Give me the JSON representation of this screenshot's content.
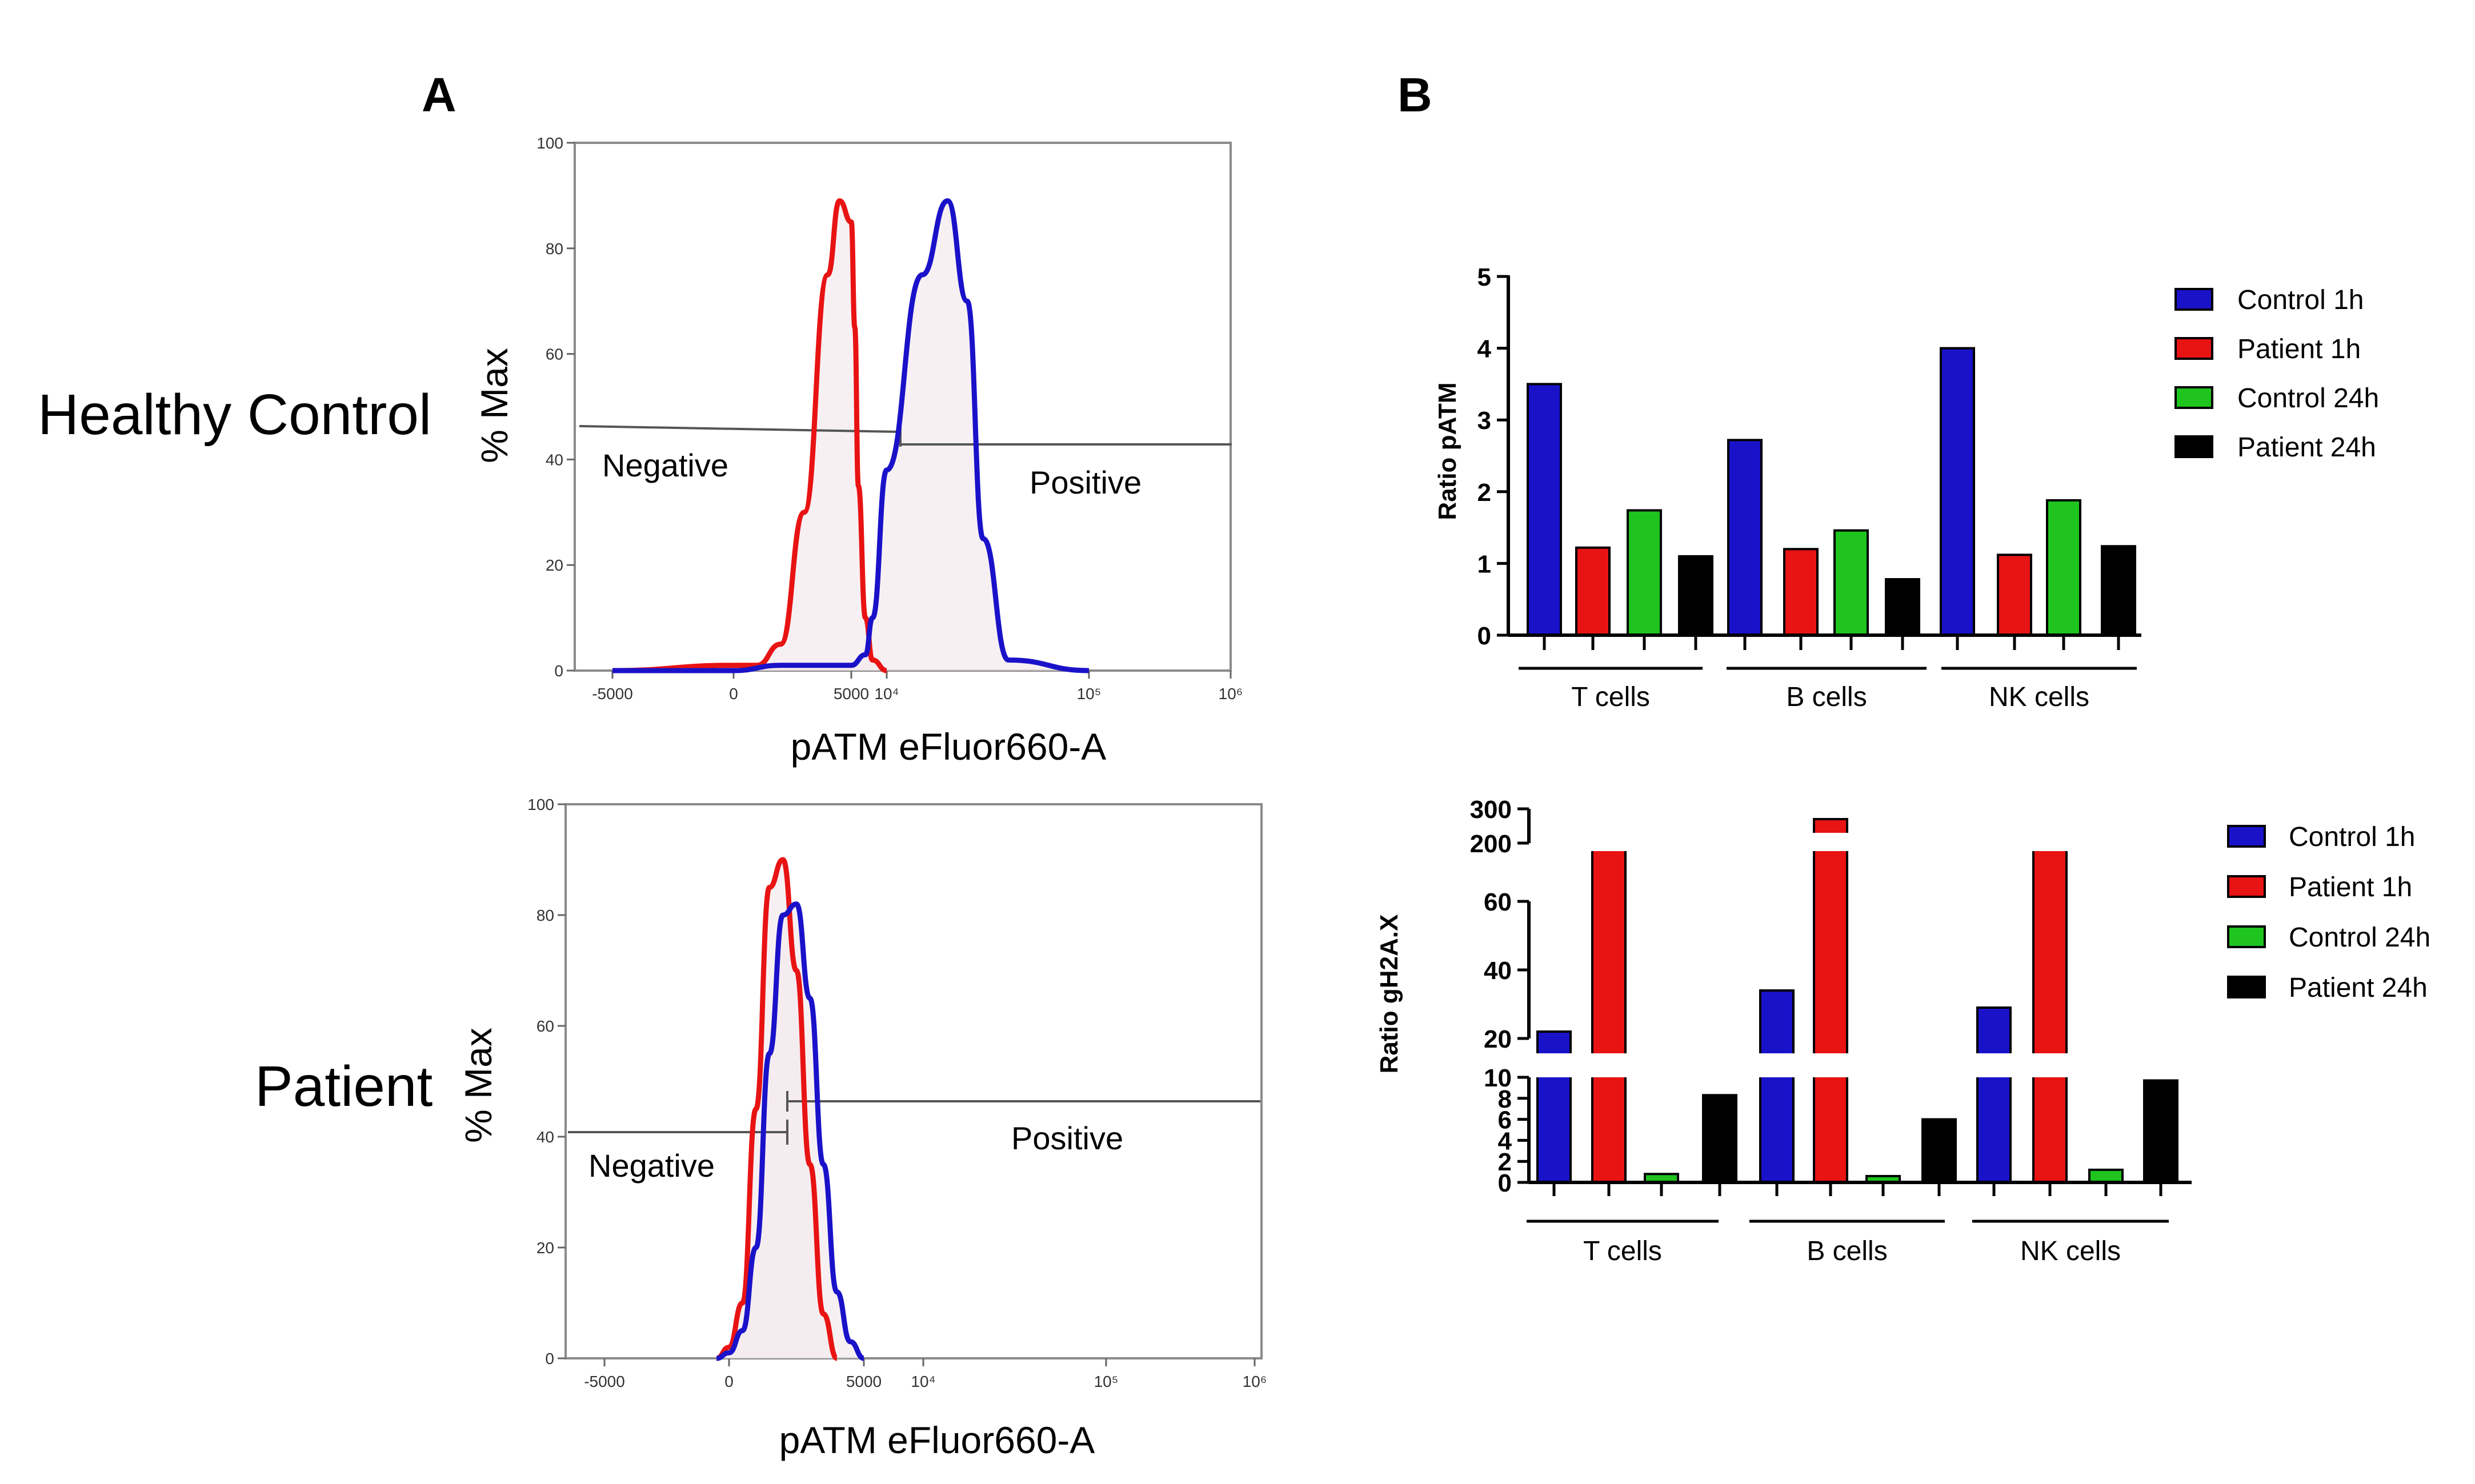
{
  "panel_labels": {
    "a": "A",
    "b": "B"
  },
  "rows": {
    "healthy": "Healthy Control",
    "patient": "Patient"
  },
  "colors": {
    "control": "#1a12c9",
    "patient": "#e81313",
    "control24": "#1fc41f",
    "patient24": "#000000",
    "fill": "#f3e9ee"
  },
  "chart_data": [
    {
      "type": "line",
      "title": "",
      "row_label": "Healthy Control",
      "xlabel": "pATM eFluor660-A",
      "ylabel": "% Max",
      "ylim": [
        0,
        100
      ],
      "y_ticks": [
        "0",
        "20",
        "40",
        "60",
        "80",
        "100"
      ],
      "x_ticks": [
        "-5000",
        "0",
        "5000",
        "10⁴",
        "10⁵",
        "10⁶"
      ],
      "gates": [
        {
          "label": "Negative"
        },
        {
          "label": "Positive"
        }
      ],
      "series": [
        {
          "color": "#e81313",
          "x": [
            "-5000",
            "0",
            "1000",
            "2000",
            "3000",
            "4000",
            "4500",
            "5000",
            "5500",
            "6000",
            "7000",
            "8000",
            "10⁴"
          ],
          "y": [
            0,
            1,
            1,
            5,
            30,
            75,
            89,
            85,
            65,
            35,
            10,
            2,
            0
          ]
        },
        {
          "color": "#1a12c9",
          "x": [
            "-5000",
            "0",
            "2000",
            "5000",
            "7000",
            "8000",
            "10⁴",
            "1.5×10⁴",
            "2×10⁴",
            "2.5×10⁴",
            "3×10⁴",
            "4×10⁴",
            "10⁵"
          ],
          "y": [
            0,
            0,
            1,
            1,
            3,
            10,
            38,
            75,
            89,
            70,
            25,
            2,
            0
          ]
        }
      ]
    },
    {
      "type": "line",
      "title": "",
      "row_label": "Patient",
      "xlabel": "pATM eFluor660-A",
      "ylabel": "% Max",
      "ylim": [
        0,
        100
      ],
      "y_ticks": [
        "0",
        "20",
        "40",
        "60",
        "80",
        "100"
      ],
      "x_ticks": [
        "-5000",
        "0",
        "5000",
        "10⁴",
        "10⁵",
        "10⁶"
      ],
      "gates": [
        {
          "label": "Negative"
        },
        {
          "label": "Positive"
        }
      ],
      "series": [
        {
          "color": "#e81313",
          "x": [
            "-500",
            "0",
            "500",
            "1000",
            "1500",
            "2000",
            "2500",
            "3000",
            "3500",
            "4000"
          ],
          "y": [
            0,
            2,
            10,
            45,
            85,
            90,
            70,
            35,
            8,
            0
          ]
        },
        {
          "color": "#1a12c9",
          "x": [
            "-500",
            "0",
            "500",
            "1000",
            "1500",
            "2000",
            "2500",
            "3000",
            "3500",
            "4000",
            "4500",
            "5000"
          ],
          "y": [
            0,
            1,
            5,
            20,
            55,
            80,
            82,
            65,
            35,
            12,
            3,
            0
          ]
        }
      ]
    },
    {
      "type": "bar",
      "title": "",
      "ylabel": "Ratio pATM",
      "ylim": [
        0,
        5
      ],
      "y_ticks": [
        "0",
        "1",
        "2",
        "3",
        "4",
        "5"
      ],
      "categories": [
        "T cells",
        "B cells",
        "NK cells"
      ],
      "legend_position": "right",
      "series": [
        {
          "name": "Control 1h",
          "color": "#1a12c9",
          "values": [
            3.5,
            2.72,
            4.0
          ]
        },
        {
          "name": "Patient 1h",
          "color": "#e81313",
          "values": [
            1.22,
            1.2,
            1.12
          ]
        },
        {
          "name": "Control 24h",
          "color": "#1fc41f",
          "values": [
            1.74,
            1.46,
            1.88
          ]
        },
        {
          "name": "Patient 24h",
          "color": "#000000",
          "values": [
            1.1,
            0.78,
            1.24
          ]
        }
      ]
    },
    {
      "type": "bar",
      "title": "",
      "ylabel": "Ratio gH2A.X",
      "y_axis": "broken",
      "y_ticks": [
        "0",
        "2",
        "4",
        "6",
        "8",
        "10",
        "20",
        "40",
        "60",
        "200",
        "300"
      ],
      "categories": [
        "T cells",
        "B cells",
        "NK cells"
      ],
      "legend_position": "right",
      "series": [
        {
          "name": "Control 1h",
          "color": "#1a12c9",
          "values": [
            22,
            34,
            29
          ]
        },
        {
          "name": "Patient 1h",
          "color": "#e81313",
          "values": [
            68,
            270,
            62
          ]
        },
        {
          "name": "Control 24h",
          "color": "#1fc41f",
          "values": [
            0.8,
            0.6,
            1.2
          ]
        },
        {
          "name": "Patient 24h",
          "color": "#000000",
          "values": [
            8.3,
            6.0,
            9.7
          ]
        }
      ]
    }
  ]
}
